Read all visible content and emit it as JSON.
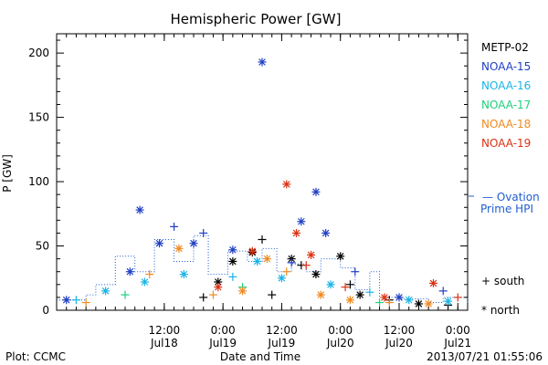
{
  "chart_data": {
    "type": "scatter",
    "title": "Hemispheric Power [GW]",
    "ylabel": "P [GW]",
    "xlabel": "Date and Time",
    "ylim": [
      0,
      215
    ],
    "yticks": [
      0,
      50,
      100,
      150,
      200
    ],
    "x_range": [
      "2013-07-17 14:00",
      "2013-07-21 02:00"
    ],
    "xticks": [
      {
        "x": "2013-07-18 12:00",
        "time": "12:00",
        "date": "Jul18"
      },
      {
        "x": "2013-07-19 00:00",
        "time": "0:00",
        "date": "Jul19"
      },
      {
        "x": "2013-07-19 12:00",
        "time": "12:00",
        "date": "Jul19"
      },
      {
        "x": "2013-07-20 00:00",
        "time": "0:00",
        "date": "Jul20"
      },
      {
        "x": "2013-07-20 12:00",
        "time": "12:00",
        "date": "Jul20"
      },
      {
        "x": "2013-07-21 00:00",
        "time": "0:00",
        "date": "Jul21"
      }
    ],
    "legend": {
      "placement": "right",
      "satellites": [
        {
          "name": "METP-02",
          "color": "#000000"
        },
        {
          "name": "NOAA-15",
          "color": "#1f3fc4"
        },
        {
          "name": "NOAA-16",
          "color": "#19b4e6"
        },
        {
          "name": "NOAA-17",
          "color": "#1fd07a"
        },
        {
          "name": "NOAA-18",
          "color": "#f08a1e"
        },
        {
          "name": "NOAA-19",
          "color": "#dc3214"
        }
      ],
      "ovation_line1": "— Ovation",
      "ovation_line2": "Prime HPI",
      "ovation_color": "#1f5fd0",
      "south_label": "+ south",
      "north_label": "* north"
    },
    "ovation_hpi": [
      {
        "x": "2013-07-17 14:00",
        "y": 8
      },
      {
        "x": "2013-07-17 20:00",
        "y": 12
      },
      {
        "x": "2013-07-17 22:00",
        "y": 20
      },
      {
        "x": "2013-07-18 02:00",
        "y": 42
      },
      {
        "x": "2013-07-18 06:00",
        "y": 30
      },
      {
        "x": "2013-07-18 10:00",
        "y": 55
      },
      {
        "x": "2013-07-18 14:00",
        "y": 38
      },
      {
        "x": "2013-07-18 18:00",
        "y": 58
      },
      {
        "x": "2013-07-18 21:00",
        "y": 28
      },
      {
        "x": "2013-07-19 01:00",
        "y": 46
      },
      {
        "x": "2013-07-19 05:00",
        "y": 38
      },
      {
        "x": "2013-07-19 08:00",
        "y": 48
      },
      {
        "x": "2013-07-19 11:00",
        "y": 30
      },
      {
        "x": "2013-07-19 14:00",
        "y": 36
      },
      {
        "x": "2013-07-19 17:00",
        "y": 30
      },
      {
        "x": "2013-07-19 20:00",
        "y": 40
      },
      {
        "x": "2013-07-20 00:00",
        "y": 33
      },
      {
        "x": "2013-07-20 03:00",
        "y": 16
      },
      {
        "x": "2013-07-20 06:00",
        "y": 30
      },
      {
        "x": "2013-07-20 08:00",
        "y": 10
      },
      {
        "x": "2013-07-20 12:00",
        "y": 9
      },
      {
        "x": "2013-07-20 18:00",
        "y": 6
      },
      {
        "x": "2013-07-20 21:00",
        "y": 10
      },
      {
        "x": "2013-07-21 02:00",
        "y": 6
      }
    ],
    "series": [
      {
        "name": "METP-02",
        "points": [
          {
            "x": "2013-07-18 20:00",
            "y": 10,
            "hemi": "south"
          },
          {
            "x": "2013-07-18 23:00",
            "y": 22,
            "hemi": "north"
          },
          {
            "x": "2013-07-19 02:00",
            "y": 38,
            "hemi": "north"
          },
          {
            "x": "2013-07-19 06:00",
            "y": 45,
            "hemi": "north"
          },
          {
            "x": "2013-07-19 08:00",
            "y": 55,
            "hemi": "south"
          },
          {
            "x": "2013-07-19 10:00",
            "y": 12,
            "hemi": "south"
          },
          {
            "x": "2013-07-19 14:00",
            "y": 40,
            "hemi": "north"
          },
          {
            "x": "2013-07-19 16:00",
            "y": 35,
            "hemi": "south"
          },
          {
            "x": "2013-07-19 19:00",
            "y": 28,
            "hemi": "north"
          },
          {
            "x": "2013-07-20 00:00",
            "y": 42,
            "hemi": "north"
          },
          {
            "x": "2013-07-20 02:00",
            "y": 20,
            "hemi": "south"
          },
          {
            "x": "2013-07-20 04:00",
            "y": 12,
            "hemi": "north"
          },
          {
            "x": "2013-07-20 10:00",
            "y": 8,
            "hemi": "south"
          },
          {
            "x": "2013-07-20 16:00",
            "y": 5,
            "hemi": "north"
          },
          {
            "x": "2013-07-20 22:00",
            "y": 4,
            "hemi": "south"
          }
        ]
      },
      {
        "name": "NOAA-15",
        "points": [
          {
            "x": "2013-07-17 16:00",
            "y": 8,
            "hemi": "north"
          },
          {
            "x": "2013-07-18 05:00",
            "y": 30,
            "hemi": "north"
          },
          {
            "x": "2013-07-18 07:00",
            "y": 78,
            "hemi": "north"
          },
          {
            "x": "2013-07-18 11:00",
            "y": 52,
            "hemi": "north"
          },
          {
            "x": "2013-07-18 14:00",
            "y": 65,
            "hemi": "south"
          },
          {
            "x": "2013-07-18 18:00",
            "y": 52,
            "hemi": "north"
          },
          {
            "x": "2013-07-18 20:00",
            "y": 60,
            "hemi": "south"
          },
          {
            "x": "2013-07-19 02:00",
            "y": 47,
            "hemi": "north"
          },
          {
            "x": "2013-07-19 08:00",
            "y": 193,
            "hemi": "north"
          },
          {
            "x": "2013-07-19 14:00",
            "y": 37,
            "hemi": "south"
          },
          {
            "x": "2013-07-19 16:00",
            "y": 69,
            "hemi": "north"
          },
          {
            "x": "2013-07-19 19:00",
            "y": 92,
            "hemi": "north"
          },
          {
            "x": "2013-07-19 21:00",
            "y": 60,
            "hemi": "north"
          },
          {
            "x": "2013-07-20 03:00",
            "y": 30,
            "hemi": "south"
          },
          {
            "x": "2013-07-20 12:00",
            "y": 10,
            "hemi": "north"
          },
          {
            "x": "2013-07-20 21:00",
            "y": 15,
            "hemi": "south"
          }
        ]
      },
      {
        "name": "NOAA-16",
        "points": [
          {
            "x": "2013-07-17 18:00",
            "y": 8,
            "hemi": "south"
          },
          {
            "x": "2013-07-18 00:00",
            "y": 15,
            "hemi": "north"
          },
          {
            "x": "2013-07-18 08:00",
            "y": 22,
            "hemi": "north"
          },
          {
            "x": "2013-07-18 16:00",
            "y": 28,
            "hemi": "north"
          },
          {
            "x": "2013-07-19 02:00",
            "y": 26,
            "hemi": "south"
          },
          {
            "x": "2013-07-19 07:00",
            "y": 38,
            "hemi": "north"
          },
          {
            "x": "2013-07-19 12:00",
            "y": 25,
            "hemi": "north"
          },
          {
            "x": "2013-07-19 22:00",
            "y": 20,
            "hemi": "north"
          },
          {
            "x": "2013-07-20 06:00",
            "y": 14,
            "hemi": "south"
          },
          {
            "x": "2013-07-20 14:00",
            "y": 8,
            "hemi": "north"
          },
          {
            "x": "2013-07-20 22:00",
            "y": 7,
            "hemi": "north"
          }
        ]
      },
      {
        "name": "NOAA-17",
        "points": [
          {
            "x": "2013-07-18 04:00",
            "y": 12,
            "hemi": "south"
          },
          {
            "x": "2013-07-19 04:00",
            "y": 18,
            "hemi": "south"
          },
          {
            "x": "2013-07-20 08:00",
            "y": 6,
            "hemi": "south"
          }
        ]
      },
      {
        "name": "NOAA-18",
        "points": [
          {
            "x": "2013-07-17 20:00",
            "y": 6,
            "hemi": "south"
          },
          {
            "x": "2013-07-18 09:00",
            "y": 28,
            "hemi": "south"
          },
          {
            "x": "2013-07-18 15:00",
            "y": 48,
            "hemi": "north"
          },
          {
            "x": "2013-07-18 22:00",
            "y": 12,
            "hemi": "south"
          },
          {
            "x": "2013-07-19 04:00",
            "y": 15,
            "hemi": "north"
          },
          {
            "x": "2013-07-19 09:00",
            "y": 40,
            "hemi": "north"
          },
          {
            "x": "2013-07-19 13:00",
            "y": 30,
            "hemi": "south"
          },
          {
            "x": "2013-07-19 20:00",
            "y": 12,
            "hemi": "north"
          },
          {
            "x": "2013-07-20 02:00",
            "y": 8,
            "hemi": "north"
          },
          {
            "x": "2013-07-20 10:00",
            "y": 6,
            "hemi": "south"
          },
          {
            "x": "2013-07-20 18:00",
            "y": 5,
            "hemi": "north"
          }
        ]
      },
      {
        "name": "NOAA-19",
        "points": [
          {
            "x": "2013-07-18 23:00",
            "y": 18,
            "hemi": "north"
          },
          {
            "x": "2013-07-19 06:00",
            "y": 46,
            "hemi": "north"
          },
          {
            "x": "2013-07-19 13:00",
            "y": 98,
            "hemi": "north"
          },
          {
            "x": "2013-07-19 15:00",
            "y": 60,
            "hemi": "north"
          },
          {
            "x": "2013-07-19 17:00",
            "y": 35,
            "hemi": "south"
          },
          {
            "x": "2013-07-19 18:00",
            "y": 43,
            "hemi": "north"
          },
          {
            "x": "2013-07-20 01:00",
            "y": 18,
            "hemi": "south"
          },
          {
            "x": "2013-07-20 09:00",
            "y": 10,
            "hemi": "north"
          },
          {
            "x": "2013-07-20 19:00",
            "y": 21,
            "hemi": "north"
          },
          {
            "x": "2013-07-21 00:00",
            "y": 10,
            "hemi": "south"
          }
        ]
      }
    ]
  },
  "footer": {
    "left": "Plot: CCMC",
    "right": "2013/07/21 01:55:06"
  }
}
